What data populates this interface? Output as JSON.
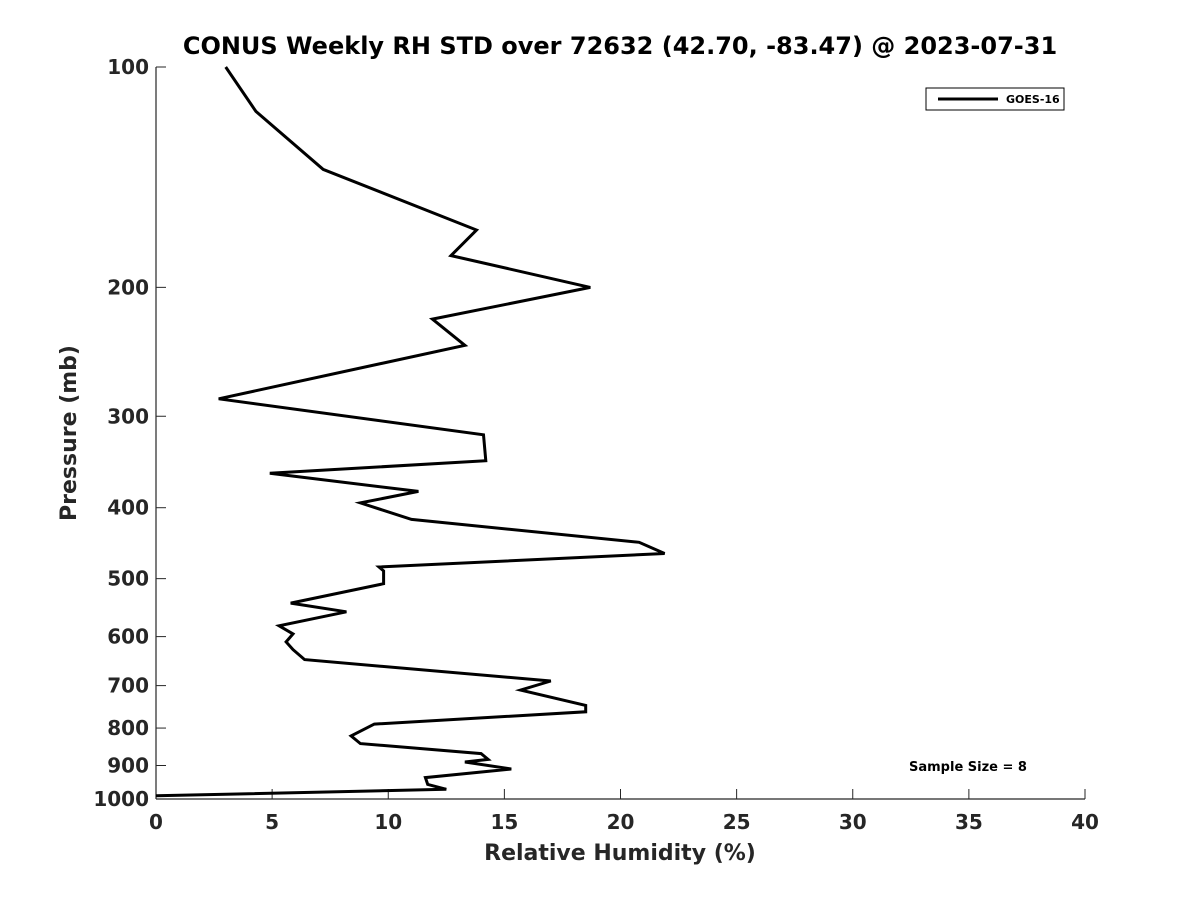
{
  "chart_data": {
    "type": "line",
    "title": "CONUS Weekly RH STD over 72632 (42.70, -83.47) @ 2023-07-31",
    "xlabel": "Relative Humidity (%)",
    "ylabel": "Pressure (mb)",
    "xlim": [
      0,
      40
    ],
    "ylim": [
      100,
      1000
    ],
    "y_scale": "log",
    "y_reversed": true,
    "x_ticks": [
      "0",
      "5",
      "10",
      "15",
      "20",
      "25",
      "30",
      "35",
      "40"
    ],
    "y_ticks": [
      "100",
      "200",
      "300",
      "400",
      "500",
      "600",
      "700",
      "800",
      "900",
      "1000"
    ],
    "grid": false,
    "legend_position": "top-right",
    "annotation": "Sample Size = 8",
    "series": [
      {
        "name": "GOES-16",
        "color": "#000000",
        "x": [
          3.0,
          4.3,
          7.2,
          13.8,
          12.7,
          18.7,
          11.9,
          13.3,
          2.7,
          14.1,
          14.2,
          4.9,
          11.3,
          8.8,
          11.0,
          20.8,
          21.9,
          9.6,
          9.8,
          9.8,
          5.8,
          8.2,
          5.3,
          5.9,
          5.6,
          5.9,
          6.4,
          17.0,
          15.7,
          18.5,
          18.5,
          9.4,
          8.4,
          8.8,
          14.0,
          14.3,
          13.3,
          15.3,
          11.6,
          11.7,
          12.5,
          0.0
        ],
        "y": [
          100,
          115,
          138,
          167,
          181,
          200,
          221,
          240,
          284,
          318,
          345,
          359,
          380,
          394,
          415,
          446,
          462,
          482,
          488,
          508,
          540,
          555,
          580,
          595,
          610,
          625,
          645,
          690,
          710,
          745,
          760,
          790,
          820,
          840,
          867,
          883,
          890,
          910,
          935,
          955,
          970,
          990
        ]
      }
    ]
  }
}
